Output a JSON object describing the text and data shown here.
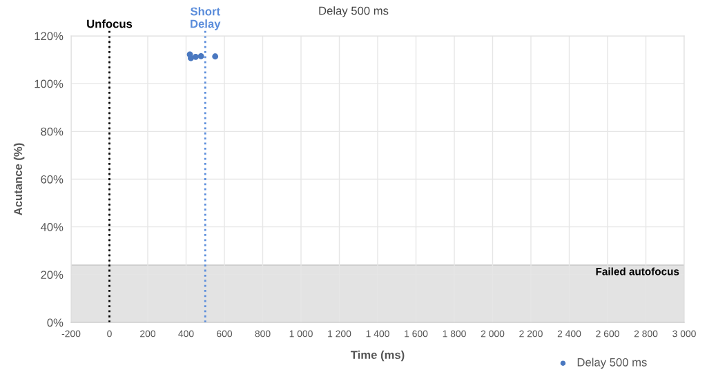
{
  "chart_data": {
    "type": "scatter",
    "title": "Delay 500 ms",
    "xlabel": "Time (ms)",
    "ylabel": "Acutance (%)",
    "series": [
      {
        "name": "Delay 500 ms",
        "color": "#4a78c0",
        "x": [
          420,
          425,
          450,
          478,
          552
        ],
        "values": [
          112.2,
          110.7,
          111.2,
          111.5,
          111.4
        ]
      }
    ],
    "xlim": [
      -200,
      3000
    ],
    "xticks": [
      -200,
      0,
      200,
      400,
      600,
      800,
      {
        "value": 1000,
        "label": "1 000"
      },
      {
        "value": 1200,
        "label": "1 200"
      },
      {
        "value": 1400,
        "label": "1 400"
      },
      {
        "value": 1600,
        "label": "1 600"
      },
      {
        "value": 1800,
        "label": "1 800"
      },
      {
        "value": 2000,
        "label": "2 000"
      },
      {
        "value": 2200,
        "label": "2 200"
      },
      {
        "value": 2400,
        "label": "2 400"
      },
      {
        "value": 2600,
        "label": "2 600"
      },
      {
        "value": 2800,
        "label": "2 800"
      },
      {
        "value": 3000,
        "label": "3 000"
      }
    ],
    "ylim": [
      0,
      120
    ],
    "yticks": [
      {
        "value": 0,
        "label": "0%"
      },
      {
        "value": 20,
        "label": "20%"
      },
      {
        "value": 40,
        "label": "40%"
      },
      {
        "value": 60,
        "label": "60%"
      },
      {
        "value": 80,
        "label": "80%"
      },
      {
        "value": 100,
        "label": "100%"
      },
      {
        "value": 120,
        "label": "120%"
      }
    ],
    "ref_lines": [
      {
        "axis": "x",
        "value": 0,
        "label": "Unfocus",
        "color": "#000000",
        "line_style": "dotted"
      },
      {
        "axis": "x",
        "value": 500,
        "label": "Short\nDelay",
        "color": "#5b8ddb",
        "line_style": "dotted"
      }
    ],
    "bands": [
      {
        "axis": "y",
        "from": 0,
        "to": 24,
        "label": "Failed autofocus",
        "color": "#e3e3e3"
      }
    ],
    "grid": true,
    "legend": "bottom right",
    "marker": "circle"
  }
}
